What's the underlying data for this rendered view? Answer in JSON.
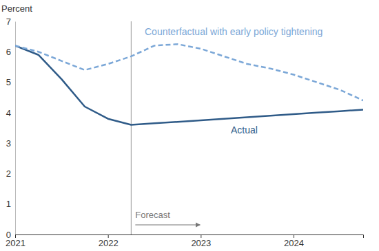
{
  "chart_data": {
    "type": "line",
    "y_label": "Percent",
    "x": [
      2021,
      2021.25,
      2021.5,
      2021.75,
      2022,
      2022.25,
      2022.5,
      2022.75,
      2023,
      2023.25,
      2023.5,
      2023.75,
      2024,
      2024.25,
      2024.5,
      2024.75
    ],
    "series": [
      {
        "name": "Actual",
        "color": "#2f5b88",
        "line_style": "solid",
        "values": [
          6.2,
          5.9,
          5.1,
          4.2,
          3.8,
          3.6,
          3.65,
          3.7,
          3.75,
          3.8,
          3.85,
          3.9,
          3.95,
          4.0,
          4.05,
          4.1
        ]
      },
      {
        "name": "Counterfactual with early policy tightening",
        "color": "#7ba7d7",
        "line_style": "dashed",
        "values": [
          6.2,
          6.0,
          5.7,
          5.4,
          5.6,
          5.85,
          6.2,
          6.25,
          6.1,
          5.85,
          5.6,
          5.45,
          5.25,
          5.0,
          4.75,
          4.4
        ]
      }
    ],
    "xlim": [
      2021,
      2024.75
    ],
    "xticks": [
      2021,
      2022,
      2023,
      2024
    ],
    "ylim": [
      0,
      7
    ],
    "yticks": [
      0,
      1,
      2,
      3,
      4,
      5,
      6,
      7
    ],
    "annotations": [
      {
        "text": "Forecast",
        "x": 2022.25
      }
    ]
  }
}
